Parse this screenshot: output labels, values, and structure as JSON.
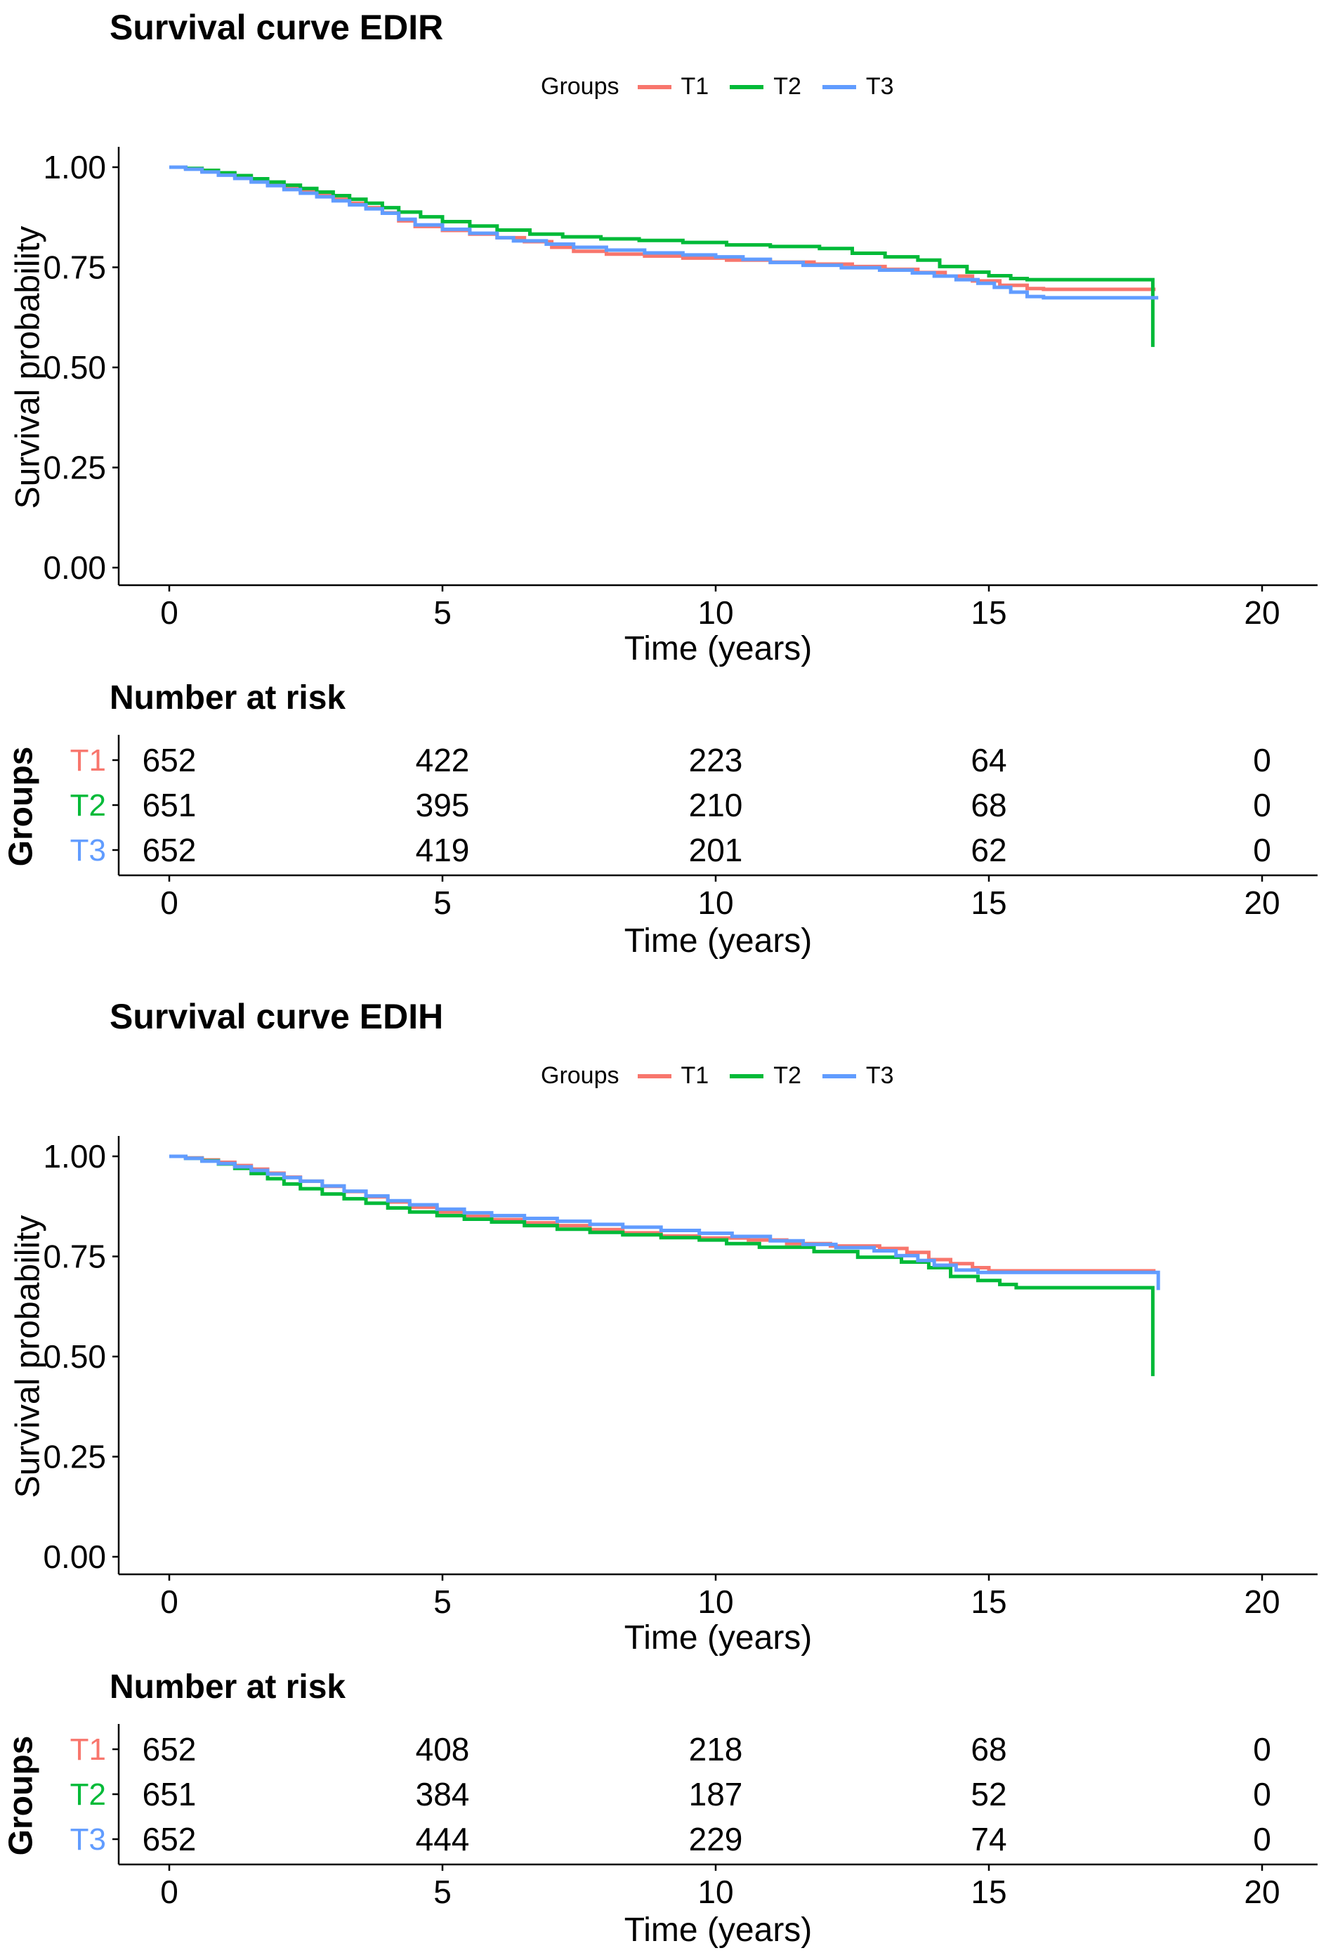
{
  "colors": {
    "t1": "#F8766D",
    "t2": "#00BA38",
    "t3": "#619CFF",
    "axis": "#000000"
  },
  "chart_data": [
    {
      "type": "line",
      "subtype": "kaplan-meier-step",
      "title": "Survival curve EDIR",
      "legend_label": "Groups",
      "legend_position": "top",
      "ylabel": "Survival probability",
      "xlabel": "Time (years)",
      "ylim": [
        0,
        1
      ],
      "xlim": [
        0,
        20
      ],
      "grid": false,
      "yticks": [
        "1.00",
        "0.75",
        "0.50",
        "0.25",
        "0.00"
      ],
      "ytick_values": [
        1.0,
        0.75,
        0.5,
        0.25,
        0.0
      ],
      "xticks": [
        "0",
        "5",
        "10",
        "15",
        "20"
      ],
      "xtick_values": [
        0,
        5,
        10,
        15,
        20
      ],
      "series": [
        {
          "name": "T1",
          "color": "#F8766D",
          "points": [
            [
              0,
              1
            ],
            [
              0.3,
              0.996
            ],
            [
              0.6,
              0.99
            ],
            [
              0.9,
              0.983
            ],
            [
              1.2,
              0.975
            ],
            [
              1.5,
              0.966
            ],
            [
              1.8,
              0.957
            ],
            [
              2.1,
              0.948
            ],
            [
              2.4,
              0.939
            ],
            [
              2.7,
              0.93
            ],
            [
              3,
              0.92
            ],
            [
              3.3,
              0.91
            ],
            [
              3.6,
              0.899
            ],
            [
              3.9,
              0.886
            ],
            [
              4.2,
              0.866
            ],
            [
              4.5,
              0.852
            ],
            [
              5,
              0.842
            ],
            [
              5.5,
              0.833
            ],
            [
              6,
              0.824
            ],
            [
              6.5,
              0.814
            ],
            [
              7,
              0.8
            ],
            [
              7.4,
              0.79
            ],
            [
              8,
              0.783
            ],
            [
              8.7,
              0.778
            ],
            [
              9.4,
              0.773
            ],
            [
              10.2,
              0.768
            ],
            [
              11,
              0.763
            ],
            [
              11.8,
              0.758
            ],
            [
              12.5,
              0.752
            ],
            [
              13.1,
              0.745
            ],
            [
              13.7,
              0.737
            ],
            [
              14.2,
              0.728
            ],
            [
              14.7,
              0.716
            ],
            [
              15.2,
              0.705
            ],
            [
              15.7,
              0.697
            ],
            [
              16,
              0.695
            ],
            [
              18.05,
              0.695
            ]
          ]
        },
        {
          "name": "T2",
          "color": "#00BA38",
          "points": [
            [
              0,
              1
            ],
            [
              0.3,
              0.997
            ],
            [
              0.6,
              0.992
            ],
            [
              0.9,
              0.986
            ],
            [
              1.2,
              0.979
            ],
            [
              1.5,
              0.971
            ],
            [
              1.8,
              0.963
            ],
            [
              2.1,
              0.955
            ],
            [
              2.4,
              0.947
            ],
            [
              2.7,
              0.938
            ],
            [
              3,
              0.929
            ],
            [
              3.3,
              0.92
            ],
            [
              3.6,
              0.91
            ],
            [
              3.9,
              0.899
            ],
            [
              4.2,
              0.888
            ],
            [
              4.6,
              0.876
            ],
            [
              5,
              0.864
            ],
            [
              5.5,
              0.853
            ],
            [
              6,
              0.843
            ],
            [
              6.6,
              0.833
            ],
            [
              7.2,
              0.826
            ],
            [
              7.9,
              0.821
            ],
            [
              8.6,
              0.817
            ],
            [
              9.4,
              0.812
            ],
            [
              10.2,
              0.806
            ],
            [
              11,
              0.802
            ],
            [
              11.9,
              0.797
            ],
            [
              12.5,
              0.785
            ],
            [
              13.1,
              0.776
            ],
            [
              13.7,
              0.768
            ],
            [
              14.1,
              0.752
            ],
            [
              14.6,
              0.738
            ],
            [
              15,
              0.729
            ],
            [
              15.4,
              0.722
            ],
            [
              15.7,
              0.719
            ],
            [
              18,
              0.719
            ],
            [
              18,
              0.551
            ]
          ]
        },
        {
          "name": "T3",
          "color": "#619CFF",
          "points": [
            [
              0,
              1
            ],
            [
              0.3,
              0.995
            ],
            [
              0.6,
              0.988
            ],
            [
              0.9,
              0.98
            ],
            [
              1.2,
              0.972
            ],
            [
              1.5,
              0.963
            ],
            [
              1.8,
              0.954
            ],
            [
              2.1,
              0.944
            ],
            [
              2.4,
              0.935
            ],
            [
              2.7,
              0.926
            ],
            [
              3,
              0.916
            ],
            [
              3.3,
              0.906
            ],
            [
              3.6,
              0.896
            ],
            [
              3.9,
              0.885
            ],
            [
              4.2,
              0.87
            ],
            [
              4.5,
              0.856
            ],
            [
              5,
              0.845
            ],
            [
              5.5,
              0.835
            ],
            [
              6,
              0.824
            ],
            [
              6.3,
              0.816
            ],
            [
              6.9,
              0.808
            ],
            [
              7.4,
              0.8
            ],
            [
              8,
              0.793
            ],
            [
              8.7,
              0.786
            ],
            [
              9.4,
              0.781
            ],
            [
              10,
              0.776
            ],
            [
              10.5,
              0.77
            ],
            [
              11,
              0.762
            ],
            [
              11.6,
              0.755
            ],
            [
              12.3,
              0.749
            ],
            [
              13,
              0.743
            ],
            [
              13.6,
              0.736
            ],
            [
              14,
              0.728
            ],
            [
              14.4,
              0.719
            ],
            [
              14.8,
              0.71
            ],
            [
              15.1,
              0.7
            ],
            [
              15.4,
              0.688
            ],
            [
              15.7,
              0.677
            ],
            [
              16,
              0.674
            ],
            [
              18.1,
              0.674
            ]
          ]
        }
      ],
      "risk_table": {
        "title": "Number at risk",
        "group_axis_label": "Groups",
        "xlabel": "Time (years)",
        "xticks": [
          "0",
          "5",
          "10",
          "15",
          "20"
        ],
        "xtick_values": [
          0,
          5,
          10,
          15,
          20
        ],
        "rows": [
          {
            "label": "T1",
            "color": "#F8766D",
            "values": [
              "652",
              "422",
              "223",
              "64",
              "0"
            ]
          },
          {
            "label": "T2",
            "color": "#00BA38",
            "values": [
              "651",
              "395",
              "210",
              "68",
              "0"
            ]
          },
          {
            "label": "T3",
            "color": "#619CFF",
            "values": [
              "652",
              "419",
              "201",
              "62",
              "0"
            ]
          }
        ]
      }
    },
    {
      "type": "line",
      "subtype": "kaplan-meier-step",
      "title": "Survival curve EDIH",
      "legend_label": "Groups",
      "legend_position": "top",
      "ylabel": "Survival probability",
      "xlabel": "Time (years)",
      "ylim": [
        0,
        1
      ],
      "xlim": [
        0,
        20
      ],
      "grid": false,
      "yticks": [
        "1.00",
        "0.75",
        "0.50",
        "0.25",
        "0.00"
      ],
      "ytick_values": [
        1.0,
        0.75,
        0.5,
        0.25,
        0.0
      ],
      "xticks": [
        "0",
        "5",
        "10",
        "15",
        "20"
      ],
      "xtick_values": [
        0,
        5,
        10,
        15,
        20
      ],
      "series": [
        {
          "name": "T1",
          "color": "#F8766D",
          "points": [
            [
              0,
              1
            ],
            [
              0.3,
              0.996
            ],
            [
              0.6,
              0.991
            ],
            [
              0.9,
              0.985
            ],
            [
              1.2,
              0.977
            ],
            [
              1.5,
              0.968
            ],
            [
              1.8,
              0.958
            ],
            [
              2.1,
              0.948
            ],
            [
              2.4,
              0.938
            ],
            [
              2.8,
              0.925
            ],
            [
              3.2,
              0.912
            ],
            [
              3.6,
              0.899
            ],
            [
              4,
              0.886
            ],
            [
              4.4,
              0.873
            ],
            [
              4.9,
              0.861
            ],
            [
              5.4,
              0.85
            ],
            [
              5.9,
              0.842
            ],
            [
              6.5,
              0.834
            ],
            [
              7.1,
              0.827
            ],
            [
              7.7,
              0.817
            ],
            [
              8.3,
              0.809
            ],
            [
              9,
              0.801
            ],
            [
              9.7,
              0.796
            ],
            [
              10.6,
              0.791
            ],
            [
              11.3,
              0.782
            ],
            [
              12.1,
              0.776
            ],
            [
              13,
              0.77
            ],
            [
              13.5,
              0.76
            ],
            [
              13.9,
              0.742
            ],
            [
              14.3,
              0.732
            ],
            [
              14.7,
              0.722
            ],
            [
              15,
              0.714
            ],
            [
              18.05,
              0.714
            ]
          ]
        },
        {
          "name": "T2",
          "color": "#00BA38",
          "points": [
            [
              0,
              1
            ],
            [
              0.3,
              0.995
            ],
            [
              0.6,
              0.989
            ],
            [
              0.9,
              0.981
            ],
            [
              1.2,
              0.97
            ],
            [
              1.5,
              0.957
            ],
            [
              1.8,
              0.944
            ],
            [
              2.1,
              0.931
            ],
            [
              2.4,
              0.919
            ],
            [
              2.8,
              0.906
            ],
            [
              3.2,
              0.894
            ],
            [
              3.6,
              0.883
            ],
            [
              4,
              0.871
            ],
            [
              4.4,
              0.861
            ],
            [
              4.9,
              0.852
            ],
            [
              5.4,
              0.843
            ],
            [
              5.9,
              0.836
            ],
            [
              6.5,
              0.827
            ],
            [
              7.1,
              0.818
            ],
            [
              7.7,
              0.81
            ],
            [
              8.3,
              0.804
            ],
            [
              9,
              0.797
            ],
            [
              9.7,
              0.791
            ],
            [
              10.2,
              0.782
            ],
            [
              10.8,
              0.773
            ],
            [
              11.8,
              0.762
            ],
            [
              12.6,
              0.748
            ],
            [
              13.4,
              0.736
            ],
            [
              13.9,
              0.722
            ],
            [
              14.3,
              0.7
            ],
            [
              14.8,
              0.69
            ],
            [
              15.2,
              0.68
            ],
            [
              15.5,
              0.672
            ],
            [
              18,
              0.672
            ],
            [
              18,
              0.451
            ]
          ]
        },
        {
          "name": "T3",
          "color": "#619CFF",
          "points": [
            [
              0,
              1
            ],
            [
              0.3,
              0.995
            ],
            [
              0.6,
              0.988
            ],
            [
              0.9,
              0.982
            ],
            [
              1.2,
              0.974
            ],
            [
              1.5,
              0.965
            ],
            [
              1.8,
              0.956
            ],
            [
              2.1,
              0.947
            ],
            [
              2.4,
              0.938
            ],
            [
              2.8,
              0.926
            ],
            [
              3.2,
              0.913
            ],
            [
              3.6,
              0.901
            ],
            [
              4,
              0.889
            ],
            [
              4.4,
              0.879
            ],
            [
              4.9,
              0.868
            ],
            [
              5.4,
              0.859
            ],
            [
              5.9,
              0.852
            ],
            [
              6.5,
              0.845
            ],
            [
              7.1,
              0.838
            ],
            [
              7.7,
              0.83
            ],
            [
              8.3,
              0.823
            ],
            [
              9,
              0.815
            ],
            [
              9.7,
              0.808
            ],
            [
              10.3,
              0.8
            ],
            [
              11,
              0.789
            ],
            [
              11.6,
              0.78
            ],
            [
              12.2,
              0.772
            ],
            [
              12.9,
              0.764
            ],
            [
              13.3,
              0.752
            ],
            [
              13.7,
              0.74
            ],
            [
              14,
              0.728
            ],
            [
              14.4,
              0.716
            ],
            [
              14.8,
              0.71
            ],
            [
              18.1,
              0.71
            ],
            [
              18.1,
              0.666
            ]
          ]
        }
      ],
      "risk_table": {
        "title": "Number at risk",
        "group_axis_label": "Groups",
        "xlabel": "Time (years)",
        "xticks": [
          "0",
          "5",
          "10",
          "15",
          "20"
        ],
        "xtick_values": [
          0,
          5,
          10,
          15,
          20
        ],
        "rows": [
          {
            "label": "T1",
            "color": "#F8766D",
            "values": [
              "652",
              "408",
              "218",
              "68",
              "0"
            ]
          },
          {
            "label": "T2",
            "color": "#00BA38",
            "values": [
              "651",
              "384",
              "187",
              "52",
              "0"
            ]
          },
          {
            "label": "T3",
            "color": "#619CFF",
            "values": [
              "652",
              "444",
              "229",
              "74",
              "0"
            ]
          }
        ]
      }
    }
  ]
}
